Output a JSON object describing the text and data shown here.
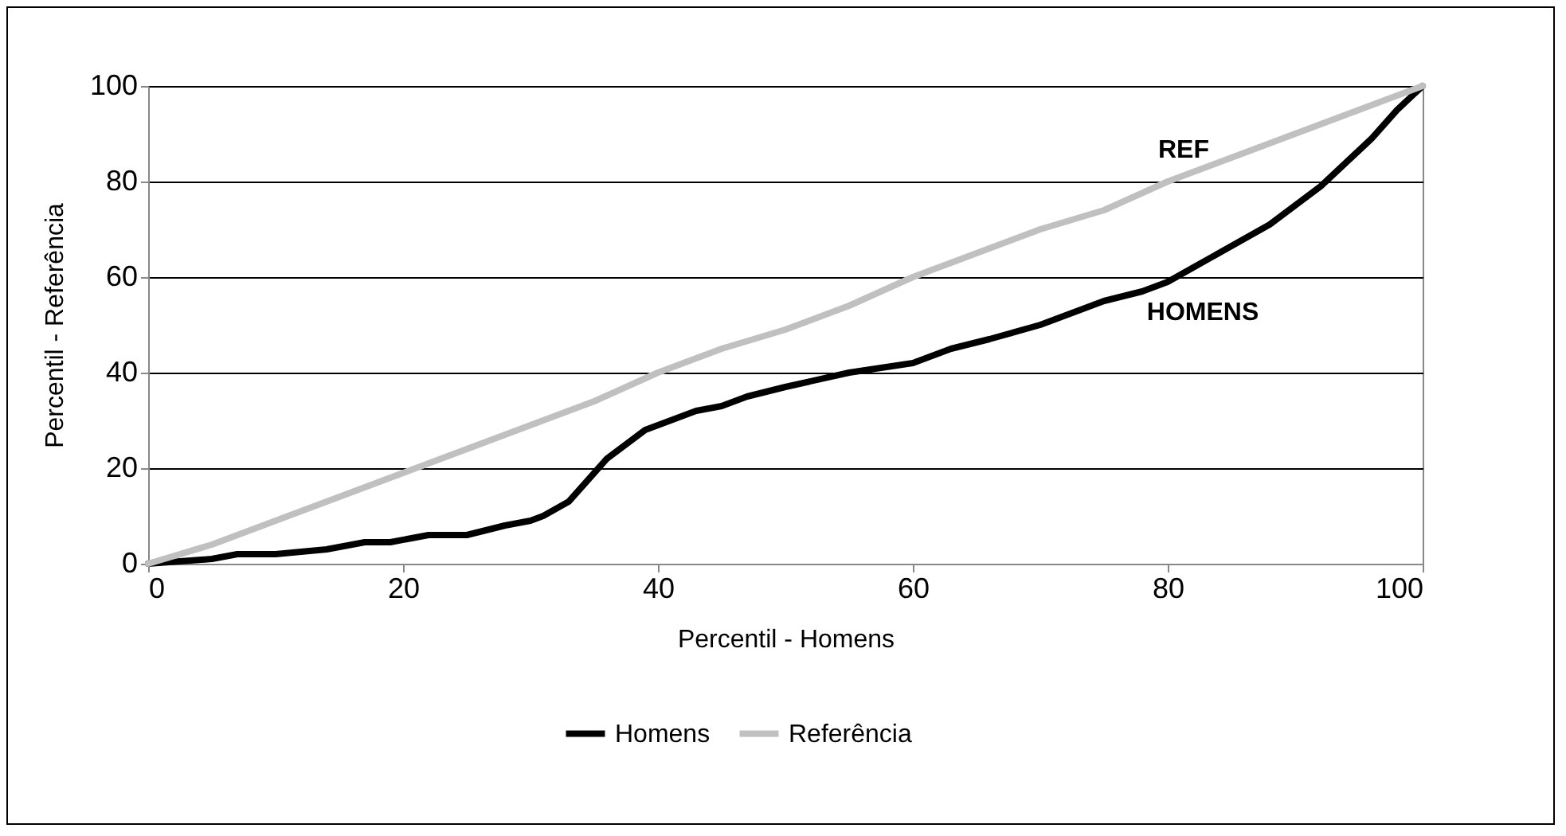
{
  "chart_data": {
    "type": "line",
    "xlabel": "Percentil - Homens",
    "ylabel": "Percentil - Referência",
    "xlim": [
      0,
      100
    ],
    "xticks": [
      0,
      20,
      40,
      60,
      80,
      100
    ],
    "ylim": [
      0,
      100
    ],
    "yticks": [
      0,
      20,
      40,
      60,
      80,
      100
    ],
    "grid": "y",
    "legend": "bottom",
    "marker": "none",
    "line_style": "solid",
    "series": [
      {
        "name": "Homens",
        "color": "#000000",
        "x": [
          0,
          5,
          7,
          10,
          14,
          17,
          19,
          22,
          25,
          28,
          30,
          31,
          33,
          34,
          35,
          36,
          37,
          38,
          39,
          40,
          41,
          42,
          43,
          45,
          47,
          50,
          55,
          60,
          63,
          66,
          70,
          72,
          75,
          78,
          80,
          82,
          84,
          86,
          88,
          90,
          92,
          94,
          96,
          98,
          100
        ],
        "values": [
          0,
          1,
          2,
          2,
          3,
          4.5,
          4.5,
          6,
          6,
          8,
          9,
          10,
          13,
          16,
          19,
          22,
          24,
          26,
          28,
          29,
          30,
          31,
          32,
          33,
          35,
          37,
          40,
          42,
          45,
          47,
          50,
          52,
          55,
          57,
          59,
          62,
          65,
          68,
          71,
          75,
          79,
          84,
          89,
          95,
          100
        ]
      },
      {
        "name": "Referência",
        "color": "#c0c0c0",
        "x": [
          0,
          5,
          10,
          15,
          20,
          25,
          30,
          35,
          40,
          45,
          50,
          55,
          60,
          65,
          70,
          75,
          80,
          85,
          90,
          95,
          100
        ],
        "values": [
          0,
          4,
          9,
          14,
          19,
          24,
          29,
          34,
          40,
          45,
          49,
          54,
          60,
          65,
          70,
          74,
          80,
          85,
          90,
          95,
          100
        ]
      }
    ],
    "annotations": [
      "REF",
      "HOMENS"
    ]
  }
}
